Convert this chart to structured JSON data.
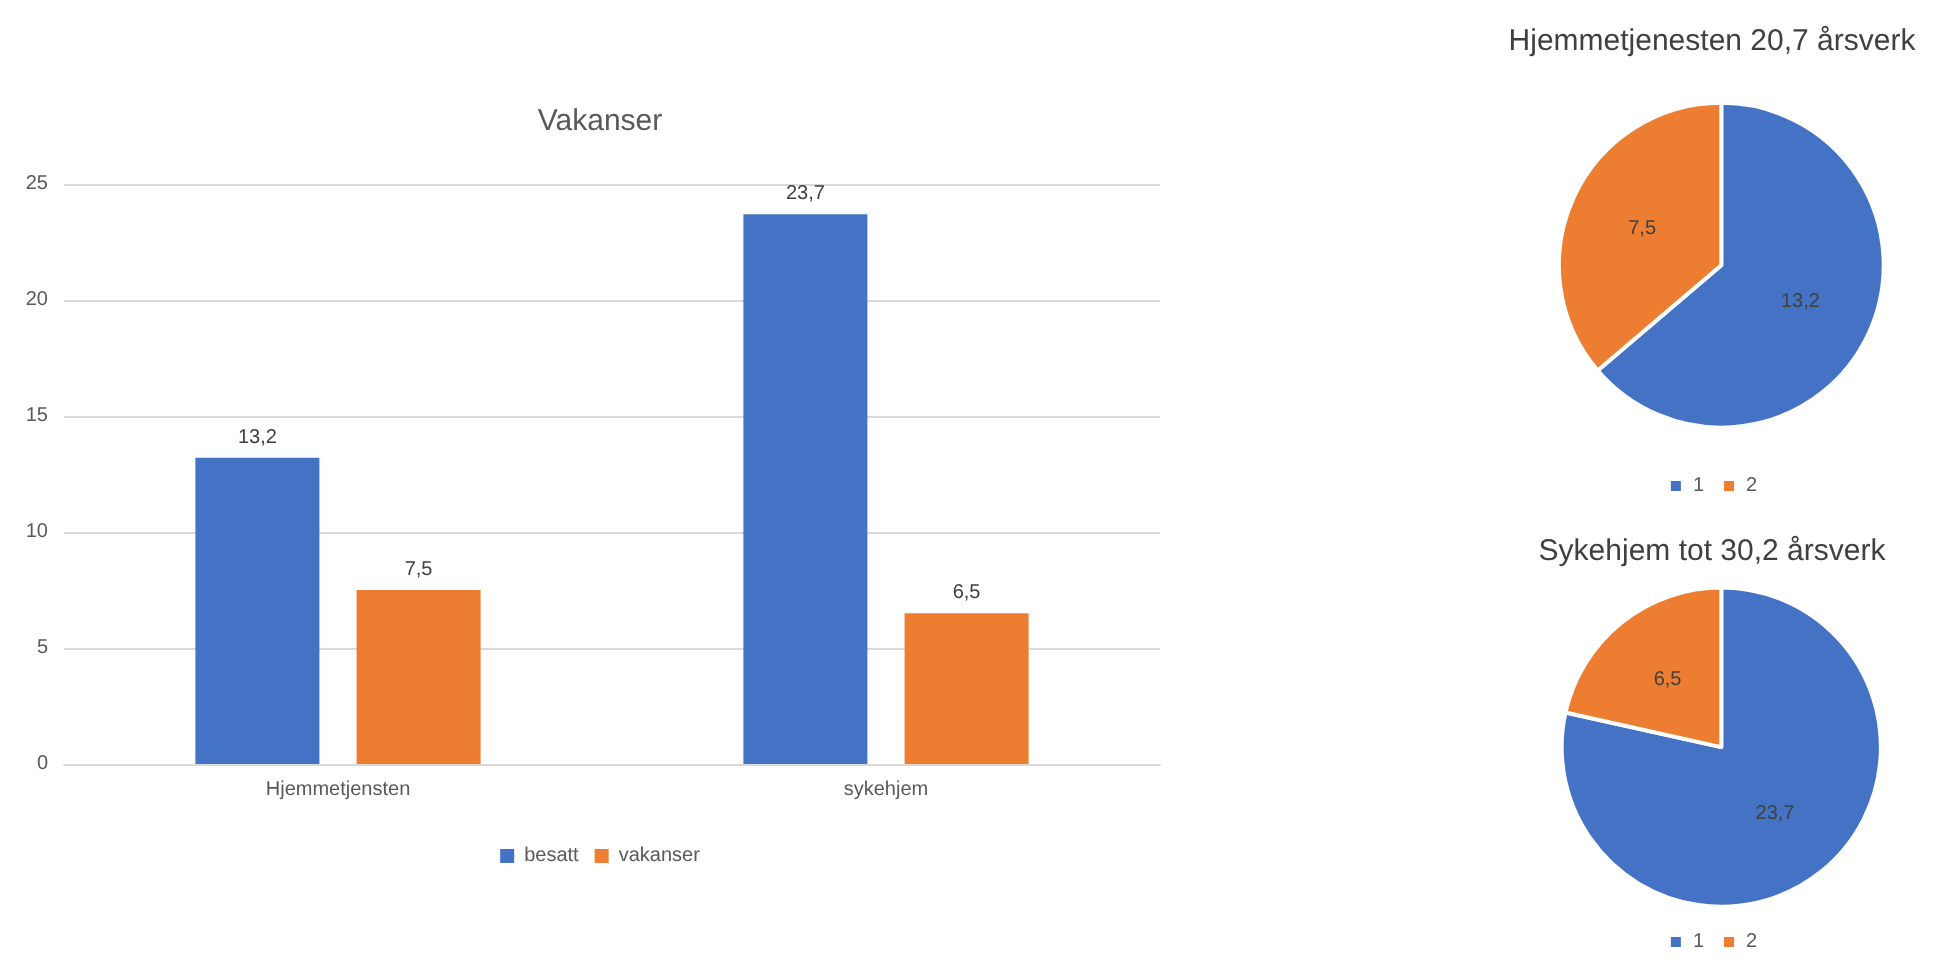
{
  "chart_data": [
    {
      "type": "bar",
      "title": "Vakanser",
      "categories": [
        "Hjemmetjensten",
        "sykehjem"
      ],
      "series": [
        {
          "name": "besatt",
          "color": "#4472c4",
          "values": [
            13.2,
            23.7
          ],
          "value_labels": [
            "13,2",
            "23,7"
          ]
        },
        {
          "name": "vakanser",
          "color": "#ed7d31",
          "values": [
            7.5,
            6.5
          ],
          "value_labels": [
            "7,5",
            "6,5"
          ]
        }
      ],
      "ylim": [
        0,
        25
      ],
      "yticks": [
        0,
        5,
        10,
        15,
        20,
        25
      ],
      "grid": "y",
      "legend": "bottom"
    },
    {
      "type": "pie",
      "title": "Hjemmetjenesten 20,7 årsverk",
      "categories": [
        "1",
        "2"
      ],
      "values": [
        13.2,
        7.5
      ],
      "value_labels": [
        "13,2",
        "7,5"
      ],
      "colors": [
        "#4472c4",
        "#ed7d31"
      ],
      "legend": "bottom"
    },
    {
      "type": "pie",
      "title": "Sykehjem tot 30,2 årsverk",
      "categories": [
        "1",
        "2"
      ],
      "values": [
        23.7,
        6.5
      ],
      "value_labels": [
        "23,7",
        "6,5"
      ],
      "colors": [
        "#4472c4",
        "#ed7d31"
      ],
      "legend": "bottom"
    }
  ]
}
